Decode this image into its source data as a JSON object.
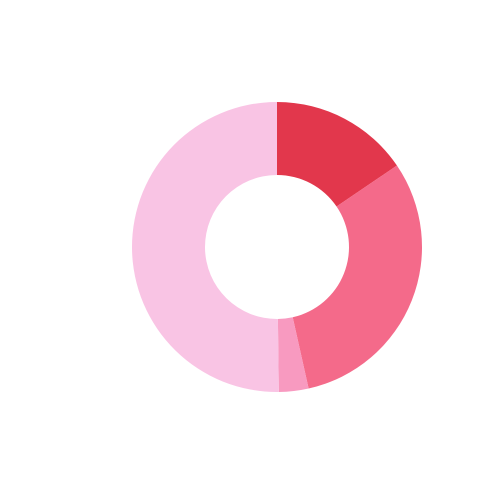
{
  "chart_data": {
    "type": "pie",
    "variant": "donut",
    "title": "",
    "slices": [
      {
        "value": 15.5,
        "color": "#e2374c"
      },
      {
        "value": 31.0,
        "color": "#f46a8a"
      },
      {
        "value": 3.3,
        "color": "#f89ac0"
      },
      {
        "value": 50.2,
        "color": "#f9c4e4"
      }
    ],
    "legend": "none"
  }
}
